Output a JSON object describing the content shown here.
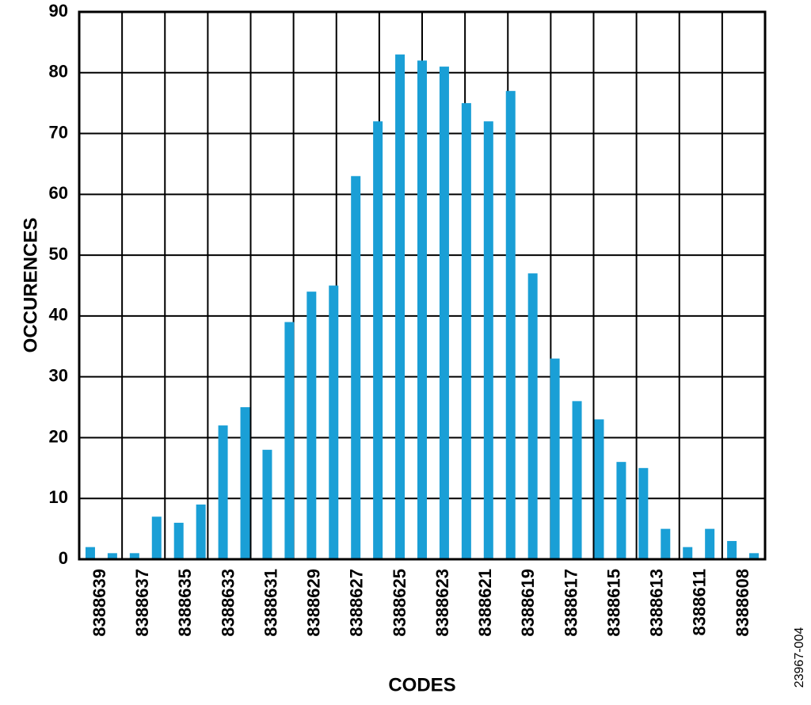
{
  "chart_data": {
    "type": "bar",
    "x_label": "CODES",
    "y_label": "OCCURENCES",
    "figure_id": "23967-004",
    "categories": [
      "8388639",
      null,
      "8388637",
      null,
      "8388635",
      null,
      "8388633",
      null,
      "8388631",
      null,
      "8388629",
      null,
      "8388627",
      null,
      "8388625",
      null,
      "8388623",
      null,
      "8388621",
      null,
      "8388619",
      null,
      "8388617",
      null,
      "8388615",
      null,
      "8388613",
      null,
      "8388611",
      null,
      "8388608"
    ],
    "values": [
      2,
      1,
      1,
      7,
      6,
      9,
      22,
      25,
      18,
      39,
      44,
      45,
      63,
      72,
      83,
      82,
      81,
      75,
      72,
      77,
      47,
      33,
      26,
      23,
      16,
      15,
      5,
      2,
      5,
      3,
      1
    ],
    "color": "#1a9fd6",
    "ylim": [
      0,
      90
    ],
    "yticks": [
      0,
      10,
      20,
      30,
      40,
      50,
      60,
      70,
      80,
      90
    ],
    "grid": true
  }
}
